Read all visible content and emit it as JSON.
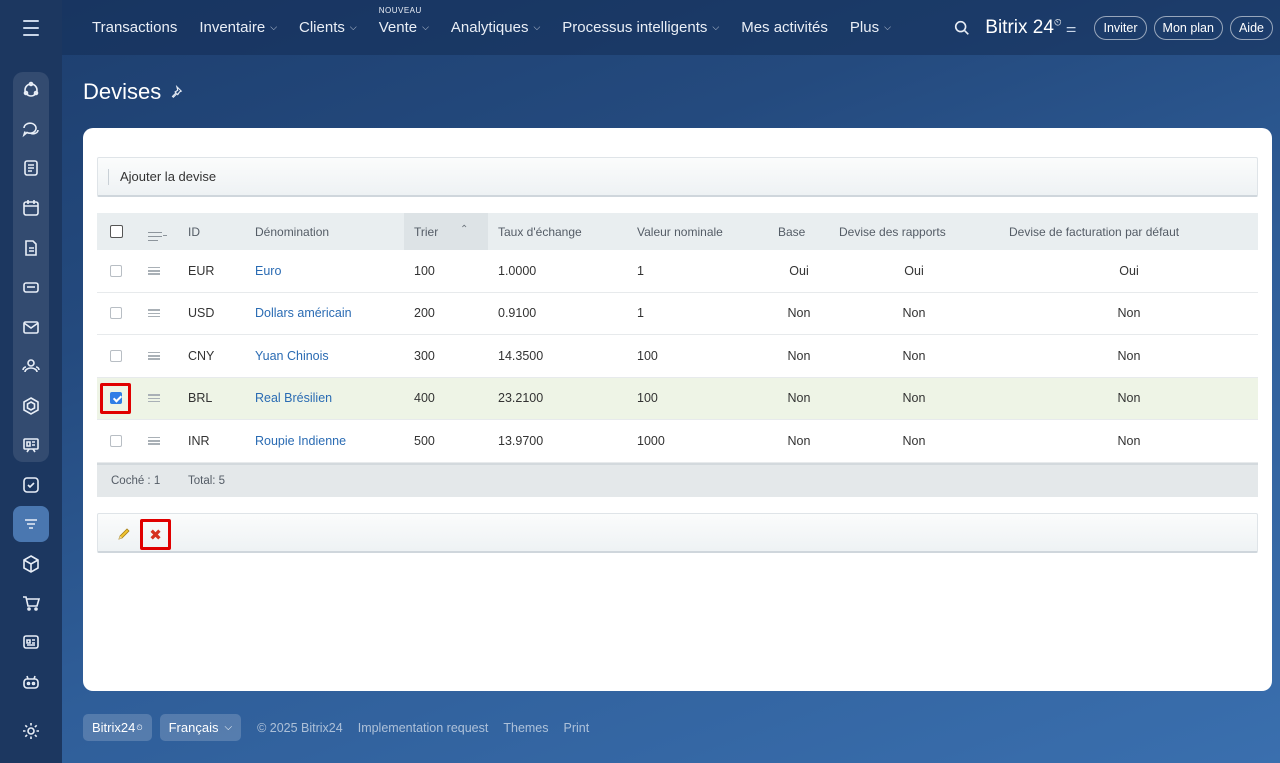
{
  "topbar": {
    "nav": [
      {
        "label": "Transactions",
        "chevron": false,
        "badge": ""
      },
      {
        "label": "Inventaire",
        "chevron": true,
        "badge": ""
      },
      {
        "label": "Clients",
        "chevron": true,
        "badge": ""
      },
      {
        "label": "Vente",
        "chevron": true,
        "badge": "NOUVEAU"
      },
      {
        "label": "Analytiques",
        "chevron": true,
        "badge": ""
      },
      {
        "label": "Processus intelligents",
        "chevron": true,
        "badge": ""
      },
      {
        "label": "Mes activités",
        "chevron": false,
        "badge": ""
      },
      {
        "label": "Plus",
        "chevron": true,
        "badge": ""
      }
    ],
    "brand": "Bitrix 24",
    "buttons": [
      "Inviter",
      "Mon plan",
      "Aide"
    ]
  },
  "page": {
    "title": "Devises"
  },
  "toolbar": {
    "add_label": "Ajouter la devise"
  },
  "grid": {
    "columns": {
      "id": "ID",
      "name": "Dénomination",
      "sort": "Trier",
      "rate": "Taux d'échange",
      "nominal": "Valeur nominale",
      "base": "Base",
      "report": "Devise des rapports",
      "billing": "Devise de facturation par défaut"
    },
    "rows": [
      {
        "id": "EUR",
        "name": "Euro",
        "sort": "100",
        "rate": "1.0000",
        "nominal": "1",
        "base": "Oui",
        "report": "Oui",
        "billing": "Oui",
        "checked": false
      },
      {
        "id": "USD",
        "name": "Dollars américain",
        "sort": "200",
        "rate": "0.9100",
        "nominal": "1",
        "base": "Non",
        "report": "Non",
        "billing": "Non",
        "checked": false
      },
      {
        "id": "CNY",
        "name": "Yuan Chinois",
        "sort": "300",
        "rate": "14.3500",
        "nominal": "100",
        "base": "Non",
        "report": "Non",
        "billing": "Non",
        "checked": false
      },
      {
        "id": "BRL",
        "name": "Real Brésilien",
        "sort": "400",
        "rate": "23.2100",
        "nominal": "100",
        "base": "Non",
        "report": "Non",
        "billing": "Non",
        "checked": true
      },
      {
        "id": "INR",
        "name": "Roupie Indienne",
        "sort": "500",
        "rate": "13.9700",
        "nominal": "1000",
        "base": "Non",
        "report": "Non",
        "billing": "Non",
        "checked": false
      }
    ],
    "footer": {
      "checked": "Coché : 1",
      "total": "Total: 5"
    }
  },
  "footer": {
    "brand": "Bitrix24",
    "language": "Français",
    "links": [
      "© 2025 Bitrix24",
      "Implementation request",
      "Themes",
      "Print"
    ]
  },
  "colors": {
    "accent": "#2a6bb3",
    "highlight": "#e00000",
    "selected_row": "#eef4e6"
  }
}
